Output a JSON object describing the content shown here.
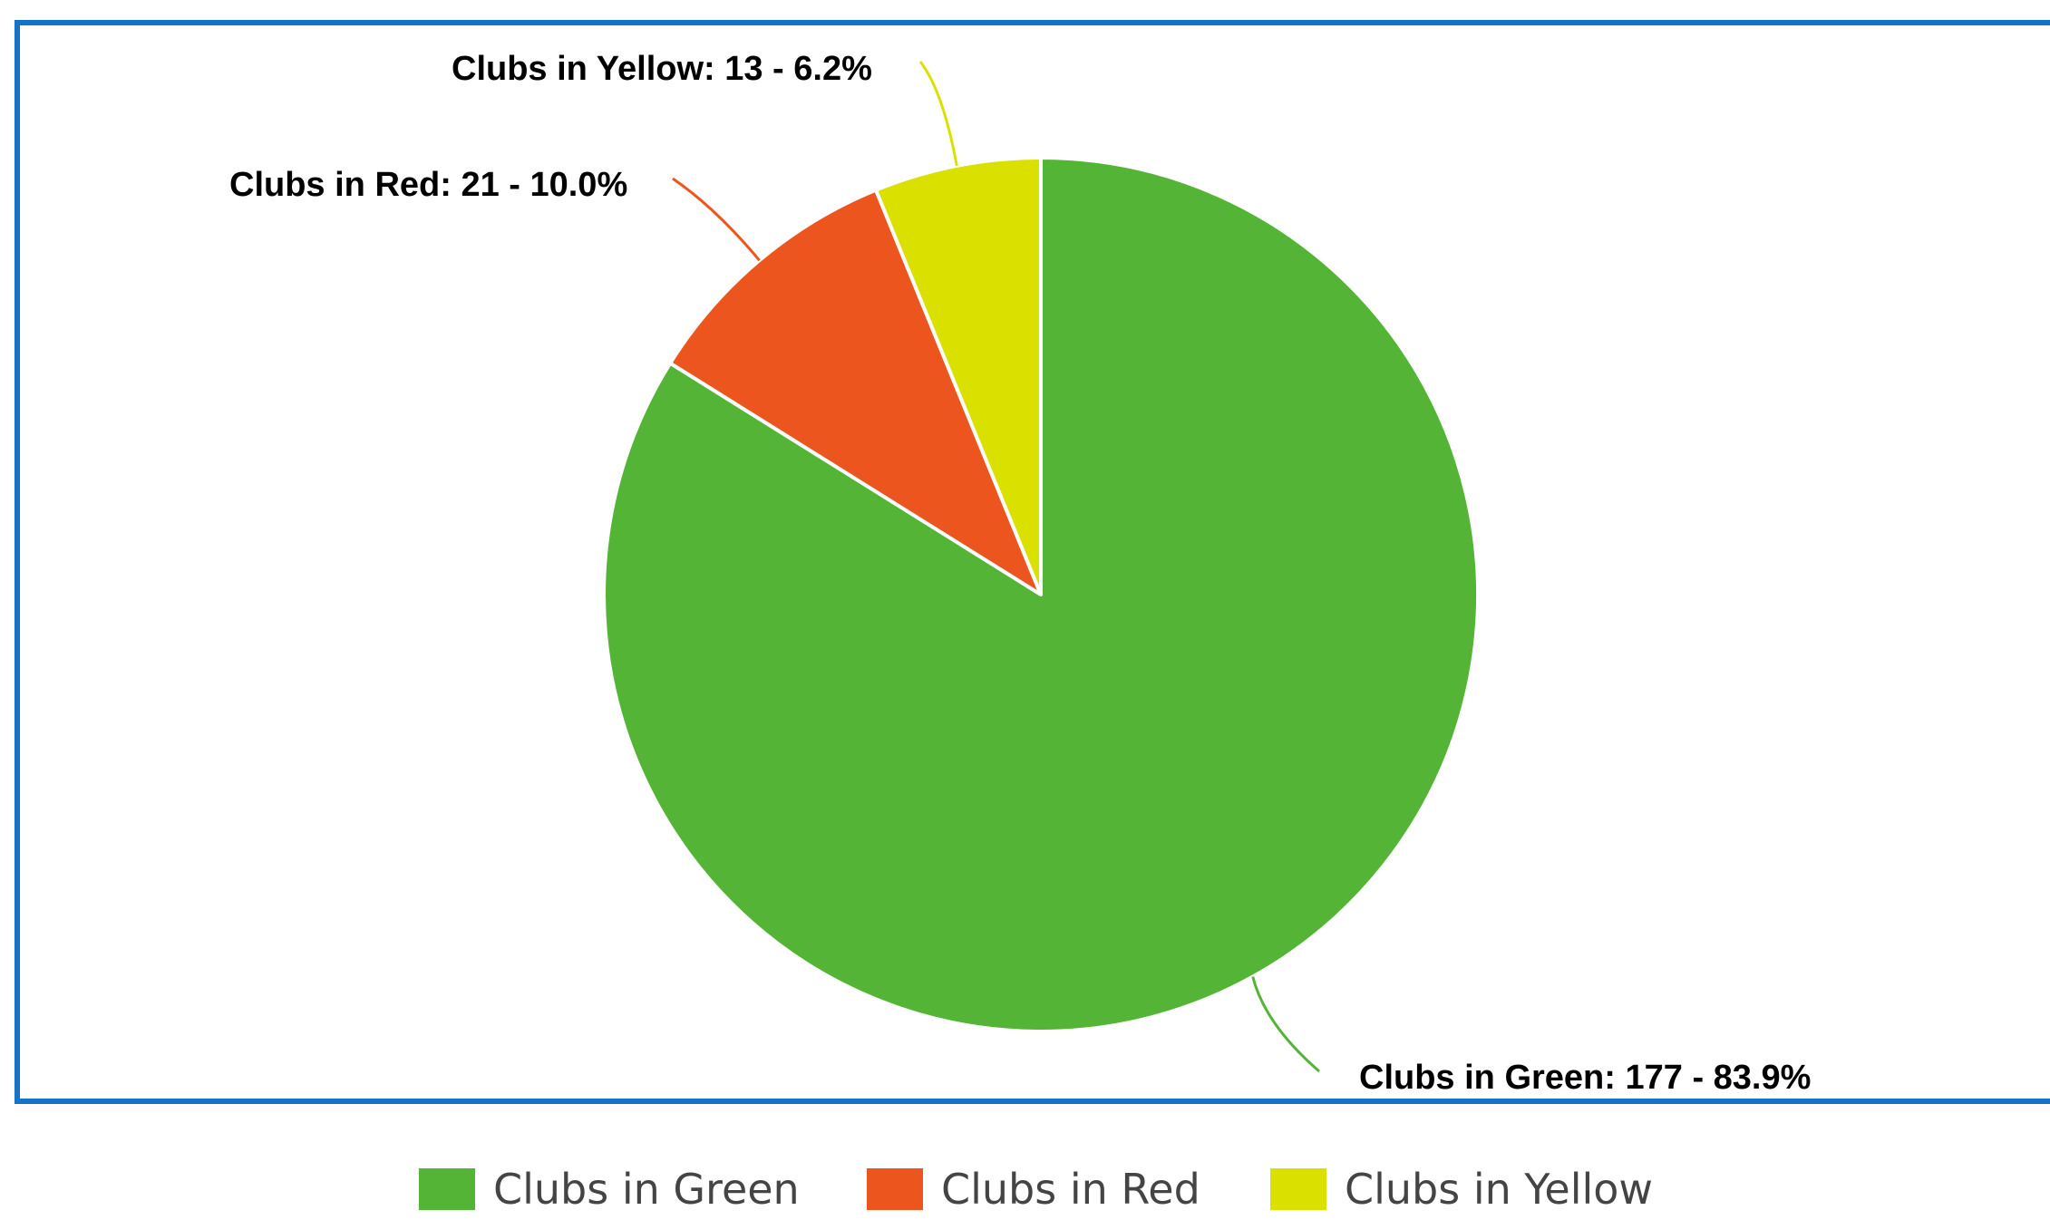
{
  "chart_data": {
    "type": "pie",
    "title": "",
    "start_angle_deg": 0,
    "direction": "clockwise",
    "slices": [
      {
        "name": "Clubs in Green",
        "value": 177,
        "percent": 83.9,
        "color": "#53b435",
        "label": "Clubs in Green: 177 - 83.9%"
      },
      {
        "name": "Clubs in Red",
        "value": 21,
        "percent": 10.0,
        "color": "#ec561e",
        "label": "Clubs in Red: 21 - 10.0%"
      },
      {
        "name": "Clubs in Yellow",
        "value": 13,
        "percent": 6.2,
        "color": "#dae100",
        "label": "Clubs in Yellow: 13 - 6.2%"
      }
    ],
    "legend_position": "bottom",
    "legend": [
      "Clubs in Green",
      "Clubs in Red",
      "Clubs in Yellow"
    ]
  },
  "colors": {
    "frame_border": "#1273c9",
    "slice_border": "#ffffff"
  }
}
